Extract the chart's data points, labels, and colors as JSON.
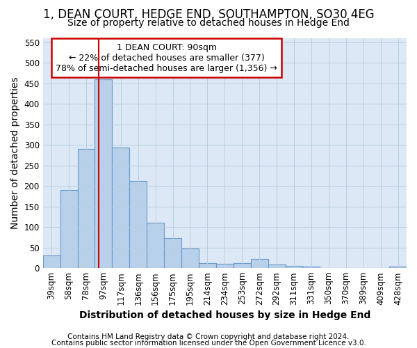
{
  "title": "1, DEAN COURT, HEDGE END, SOUTHAMPTON, SO30 4EG",
  "subtitle": "Size of property relative to detached houses in Hedge End",
  "xlabel": "Distribution of detached houses by size in Hedge End",
  "ylabel": "Number of detached properties",
  "categories": [
    "39sqm",
    "58sqm",
    "78sqm",
    "97sqm",
    "117sqm",
    "136sqm",
    "156sqm",
    "175sqm",
    "195sqm",
    "214sqm",
    "234sqm",
    "253sqm",
    "272sqm",
    "292sqm",
    "311sqm",
    "331sqm",
    "350sqm",
    "370sqm",
    "389sqm",
    "409sqm",
    "428sqm"
  ],
  "values": [
    30,
    190,
    290,
    460,
    293,
    213,
    110,
    74,
    47,
    12,
    10,
    12,
    22,
    8,
    6,
    4,
    0,
    0,
    0,
    0,
    4
  ],
  "bar_color": "#b8d0ea",
  "bar_edge_color": "#6699cc",
  "red_line_x": 2.72,
  "annotation_line1": "1 DEAN COURT: 90sqm",
  "annotation_line2": "← 22% of detached houses are smaller (377)",
  "annotation_line3": "78% of semi-detached houses are larger (1,356) →",
  "annotation_box_color": "#ffffff",
  "annotation_box_edge": "#cc0000",
  "ylim": [
    0,
    560
  ],
  "yticks": [
    0,
    50,
    100,
    150,
    200,
    250,
    300,
    350,
    400,
    450,
    500,
    550
  ],
  "footer1": "Contains HM Land Registry data © Crown copyright and database right 2024.",
  "footer2": "Contains public sector information licensed under the Open Government Licence v3.0.",
  "plot_bg_color": "#dce8f5",
  "grid_color": "#b8cfe0",
  "title_fontsize": 12,
  "subtitle_fontsize": 10,
  "axis_label_fontsize": 10,
  "tick_fontsize": 8.5,
  "annotation_fontsize": 9,
  "footer_fontsize": 7.5
}
